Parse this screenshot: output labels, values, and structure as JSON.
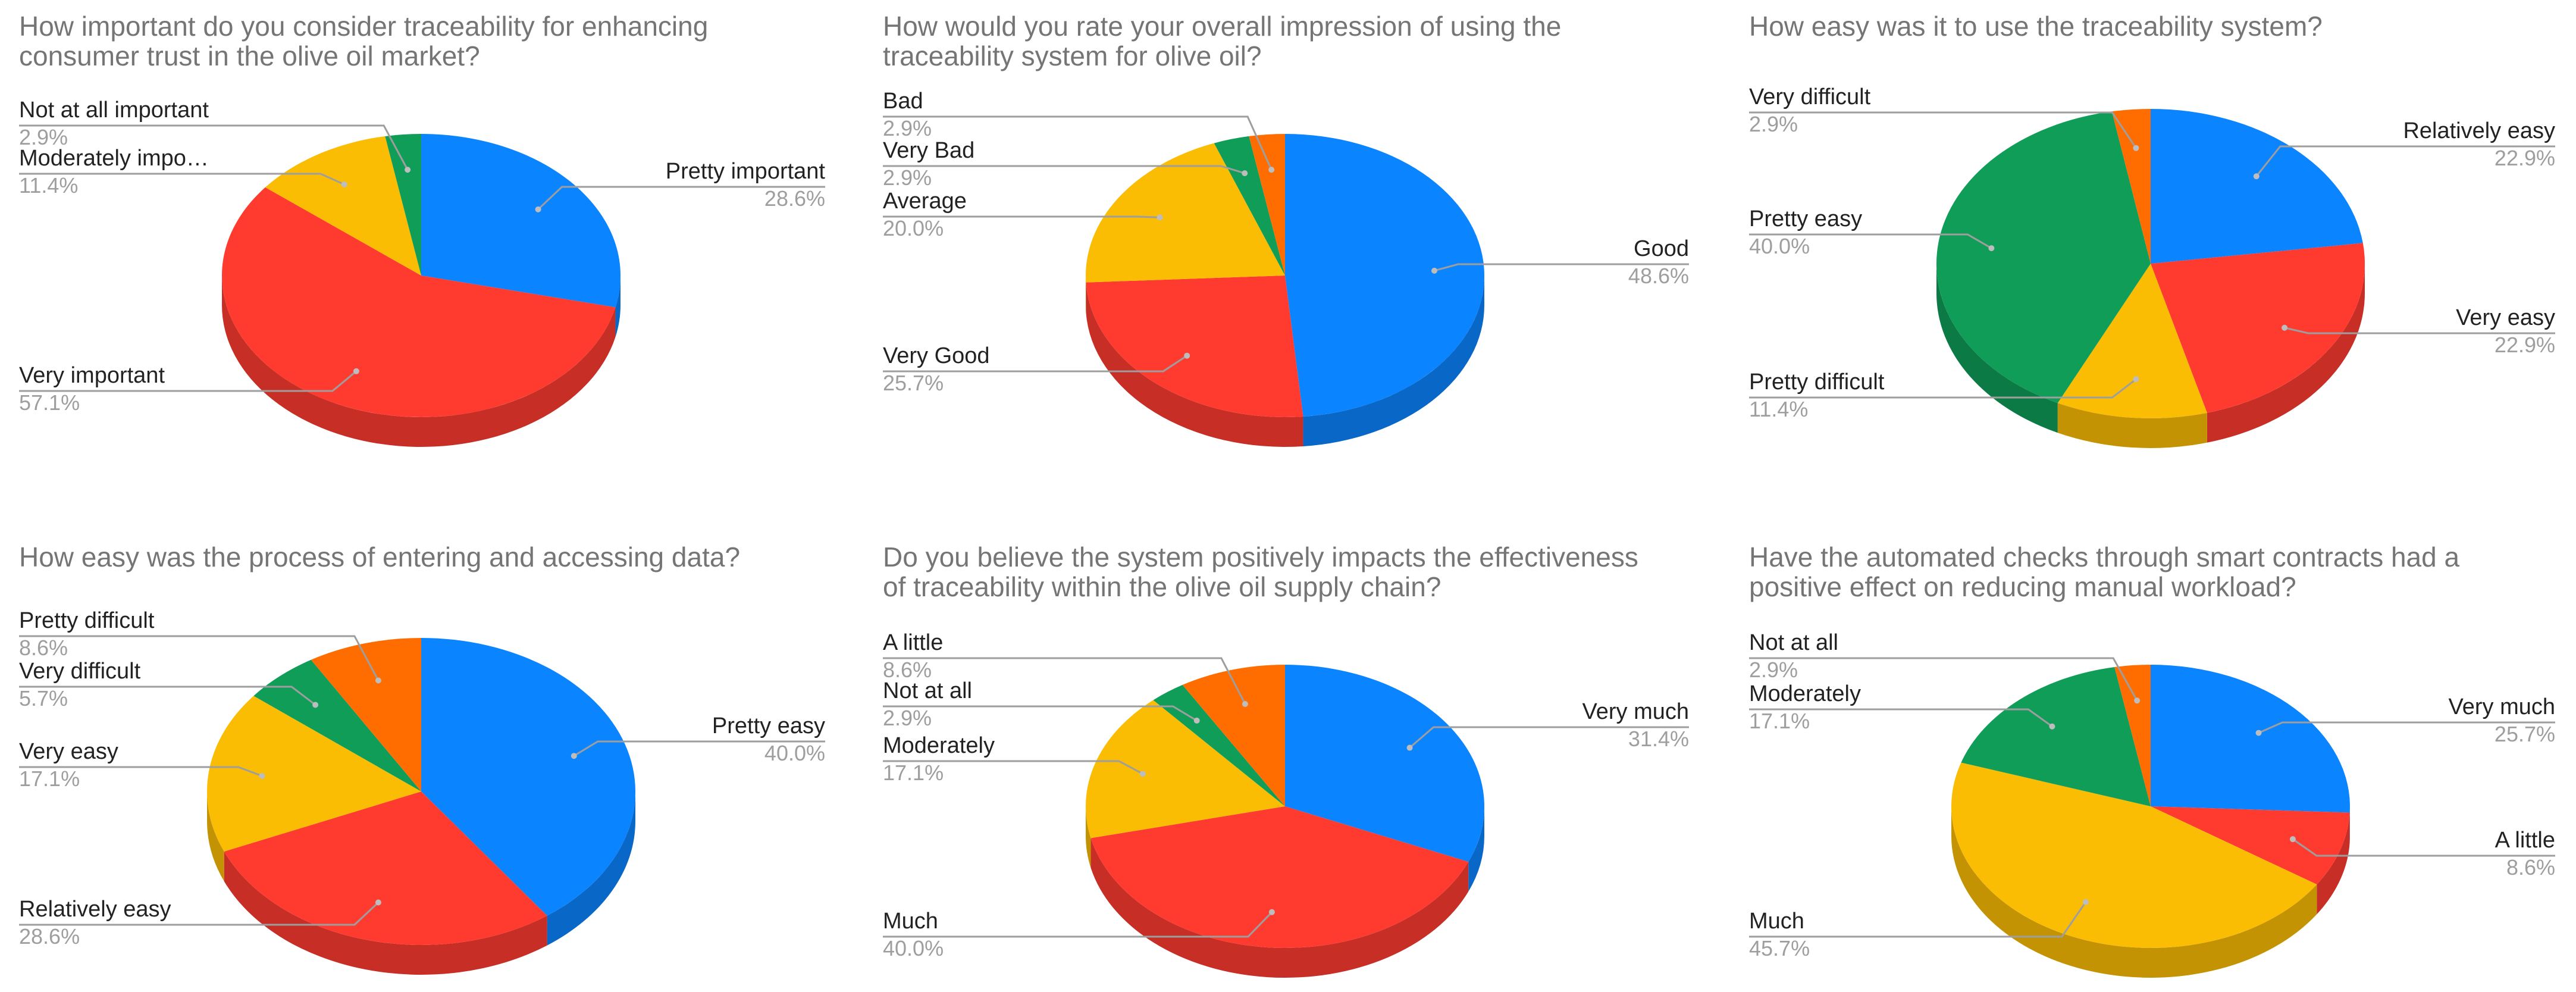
{
  "colors": {
    "blue": "#0a84ff",
    "red": "#ff3b30",
    "yellow": "#fbbc04",
    "green": "#0f9d58",
    "orange": "#ff6d01",
    "title": "#757575",
    "label": "#222222",
    "percent": "#9e9e9e",
    "leader": "#9e9e9e"
  },
  "chart_data": [
    {
      "type": "pie",
      "title_lines": [
        "How important do you consider traceability for enhancing",
        "consumer trust in the olive oil market?"
      ],
      "slices": [
        {
          "label": "Pretty important",
          "value": 28.6,
          "display": "28.6%",
          "color": "blue"
        },
        {
          "label": "Very important",
          "value": 57.1,
          "display": "57.1%",
          "color": "red"
        },
        {
          "label": "Moderately impo…",
          "value": 11.4,
          "display": "11.4%",
          "color": "yellow"
        },
        {
          "label": "Not at all important",
          "value": 2.9,
          "display": "2.9%",
          "color": "green"
        }
      ]
    },
    {
      "type": "pie",
      "title_lines": [
        "How would you rate your overall impression of using the",
        "traceability system for olive oil?"
      ],
      "slices": [
        {
          "label": "Good",
          "value": 48.6,
          "display": "48.6%",
          "color": "blue"
        },
        {
          "label": "Very Good",
          "value": 25.7,
          "display": "25.7%",
          "color": "red"
        },
        {
          "label": "Average",
          "value": 20.0,
          "display": "20.0%",
          "color": "yellow"
        },
        {
          "label": "Very Bad",
          "value": 2.9,
          "display": "2.9%",
          "color": "green"
        },
        {
          "label": "Bad",
          "value": 2.9,
          "display": "2.9%",
          "color": "orange"
        }
      ]
    },
    {
      "type": "pie",
      "title_lines": [
        "How easy was it to use the traceability system?"
      ],
      "slices": [
        {
          "label": "Relatively easy",
          "value": 22.9,
          "display": "22.9%",
          "color": "blue"
        },
        {
          "label": "Very easy",
          "value": 22.9,
          "display": "22.9%",
          "color": "red"
        },
        {
          "label": "Pretty difficult",
          "value": 11.4,
          "display": "11.4%",
          "color": "yellow"
        },
        {
          "label": "Pretty easy",
          "value": 40.0,
          "display": "40.0%",
          "color": "green"
        },
        {
          "label": "Very difficult",
          "value": 2.9,
          "display": "2.9%",
          "color": "orange"
        }
      ]
    },
    {
      "type": "pie",
      "title_lines": [
        "How easy was the process of entering and accessing data?"
      ],
      "slices": [
        {
          "label": "Pretty easy",
          "value": 40.0,
          "display": "40.0%",
          "color": "blue"
        },
        {
          "label": "Relatively easy",
          "value": 28.6,
          "display": "28.6%",
          "color": "red"
        },
        {
          "label": "Very easy",
          "value": 17.1,
          "display": "17.1%",
          "color": "yellow"
        },
        {
          "label": "Very difficult",
          "value": 5.7,
          "display": "5.7%",
          "color": "green"
        },
        {
          "label": "Pretty difficult",
          "value": 8.6,
          "display": "8.6%",
          "color": "orange"
        }
      ]
    },
    {
      "type": "pie",
      "title_lines": [
        "Do you believe the system positively impacts the effectiveness",
        "of traceability within the olive oil supply chain?"
      ],
      "slices": [
        {
          "label": "Very much",
          "value": 31.4,
          "display": "31.4%",
          "color": "blue"
        },
        {
          "label": "Much",
          "value": 40.0,
          "display": "40.0%",
          "color": "red"
        },
        {
          "label": "Moderately",
          "value": 17.1,
          "display": "17.1%",
          "color": "yellow"
        },
        {
          "label": "Not at all",
          "value": 2.9,
          "display": "2.9%",
          "color": "green"
        },
        {
          "label": "A little",
          "value": 8.6,
          "display": "8.6%",
          "color": "orange"
        }
      ]
    },
    {
      "type": "pie",
      "title_lines": [
        "Have the automated checks through smart contracts had a",
        "positive effect on reducing manual workload?"
      ],
      "slices": [
        {
          "label": "Very much",
          "value": 25.7,
          "display": "25.7%",
          "color": "blue"
        },
        {
          "label": "A little",
          "value": 8.6,
          "display": "8.6%",
          "color": "red"
        },
        {
          "label": "Much",
          "value": 45.7,
          "display": "45.7%",
          "color": "yellow"
        },
        {
          "label": "Moderately",
          "value": 17.1,
          "display": "17.1%",
          "color": "green"
        },
        {
          "label": "Not at all",
          "value": 2.9,
          "display": "2.9%",
          "color": "orange"
        }
      ]
    }
  ]
}
